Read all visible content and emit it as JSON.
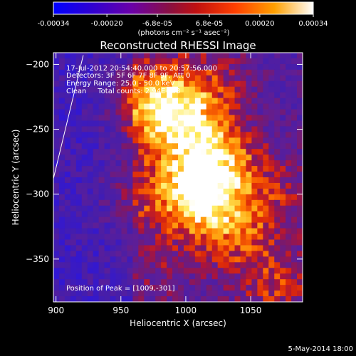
{
  "colorbar": {
    "tick_labels": [
      "-0.00034",
      "-0.00020",
      "-6.8e-05",
      "6.8e-05",
      "0.00020",
      "0.00034"
    ],
    "tick_values": [
      -0.00034,
      -0.0002,
      -6.8e-05,
      6.8e-05,
      0.0002,
      0.00034
    ],
    "range": [
      -0.00034,
      0.00034
    ],
    "units_label": "(photons cm⁻² s⁻¹ asec⁻²)"
  },
  "annotations": {
    "time_range": "17-Jul-2012 20:54:40.000 to 20:57:56.000",
    "detectors": "Detectors: 3F 5F 6F 7F 8F 9F, Att 0",
    "energy": "Energy Range: 25.0 - 50.0 keV",
    "clean": "Clean     Total counts: 2.94E+03",
    "peak": "Position of Peak = [1009,-301]"
  },
  "footer": {
    "date": "5-May-2014 18:00"
  },
  "chart_data": {
    "type": "heatmap",
    "title": "Reconstructed RHESSI Image",
    "xlabel": "Heliocentric X (arcsec)",
    "ylabel": "Heliocentric Y (arcsec)",
    "xlim": [
      898,
      1090
    ],
    "ylim": [
      -383,
      -191
    ],
    "xticks": [
      900,
      950,
      1000,
      1050
    ],
    "xtick_labels": [
      "900",
      "950",
      "1000",
      "1050"
    ],
    "yticks": [
      -200,
      -250,
      -300,
      -350
    ],
    "ytick_labels": [
      "−200",
      "−250",
      "−300",
      "−350"
    ],
    "colormap": [
      "#0000ff",
      "#4b0082",
      "#8b008b",
      "#b22222",
      "#ff4500",
      "#ffa500",
      "#ffff66",
      "#ffffff"
    ],
    "emission_blobs": [
      {
        "x": 1009,
        "y": -301,
        "value": 0.00034
      },
      {
        "x": 975,
        "y": -228,
        "value": 0.0003
      },
      {
        "x": 1000,
        "y": -250,
        "value": 0.00022
      },
      {
        "x": 1030,
        "y": -275,
        "value": 0.0002
      },
      {
        "x": 1040,
        "y": -330,
        "value": 0.00016
      },
      {
        "x": 1070,
        "y": -370,
        "value": 0.00015
      },
      {
        "x": 960,
        "y": -300,
        "value": 0.00012
      },
      {
        "x": 1020,
        "y": -215,
        "value": 0.00012
      },
      {
        "x": 980,
        "y": -360,
        "value": 8e-05
      },
      {
        "x": 1075,
        "y": -300,
        "value": 0.0001
      }
    ],
    "limb_line": [
      {
        "x": 898,
        "y": -288
      },
      {
        "x": 921,
        "y": -193
      }
    ]
  }
}
